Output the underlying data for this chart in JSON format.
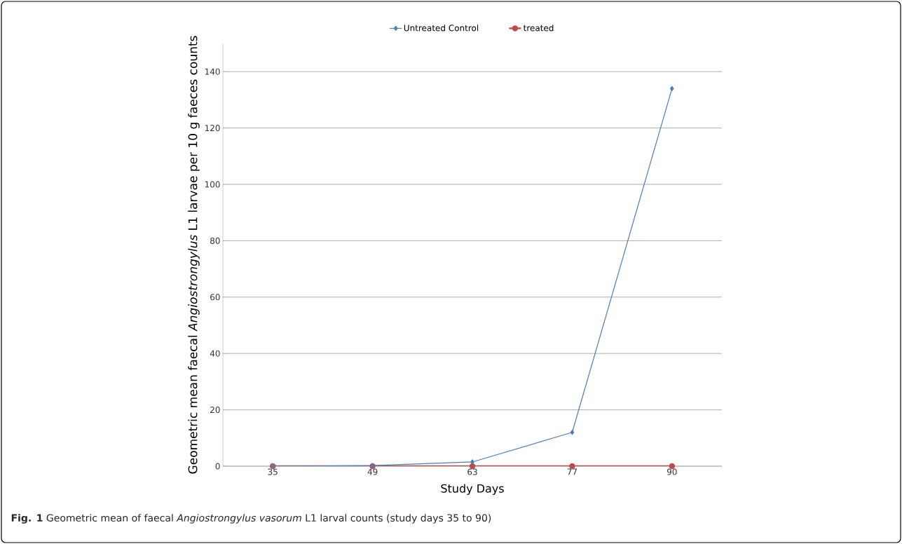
{
  "chart_data": {
    "type": "line",
    "xlabel": "Study Days",
    "ylabel": "Geometric mean faecal *Angiostrongylus* L1 larvae per 10 g  faeces counts",
    "annotations": [
      "**Fig. 1** Geometric mean of faecal *Angiostrongylus vasorum* L1 larval counts (study days 35 to 90)"
    ],
    "categories": [
      "35",
      "49",
      "63",
      "77",
      "90"
    ],
    "series": [
      {
        "name": "Untreated Control",
        "color": "#4a7ebb",
        "marker": "diamond",
        "values": [
          0,
          0.2,
          1.5,
          12,
          134
        ]
      },
      {
        "name": "treated",
        "color": "#be4b48",
        "marker": "circle",
        "values": [
          0,
          0,
          0,
          0,
          0
        ]
      }
    ],
    "ylim": [
      0,
      150
    ],
    "yticks": [
      0,
      20,
      40,
      60,
      80,
      100,
      120,
      140
    ],
    "grid": "y",
    "legend": "top",
    "line_style": "solid"
  }
}
